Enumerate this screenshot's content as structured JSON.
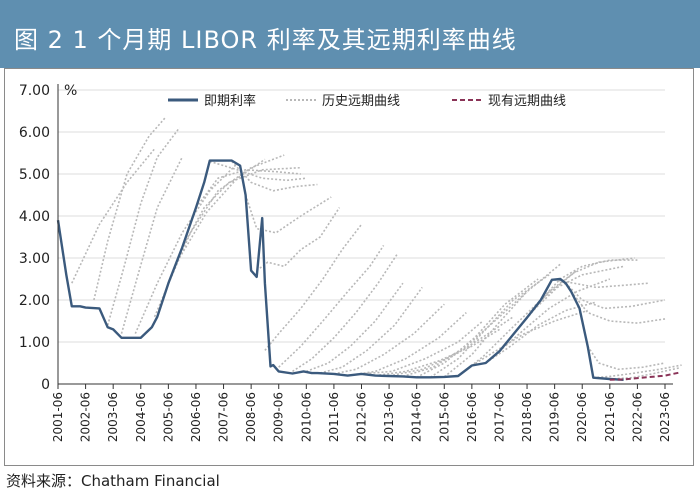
{
  "header": {
    "title": "图 2    1 个月期 LIBOR 利率及其远期利率曲线"
  },
  "source": "资料来源：Chatham Financial",
  "colors": {
    "title_bg": "#5f8fb0",
    "spot": "#3b5a7d",
    "historical": "#b8b8b8",
    "current": "#8a3357"
  },
  "chart_data": {
    "type": "line",
    "title": "1 个月期 LIBOR 利率及其远期利率曲线",
    "ylabel": "%",
    "ylim": [
      0,
      7
    ],
    "y_ticks": [
      "7.00",
      "6.00",
      "5.00",
      "4.00",
      "3.00",
      "2.00",
      "1.00",
      "0"
    ],
    "x_ticks": [
      "2001-06",
      "2002-06",
      "2003-06",
      "2004-06",
      "2005-06",
      "2006-06",
      "2007-06",
      "2008-06",
      "2009-06",
      "2010-06",
      "2011-06",
      "2012-06",
      "2013-06",
      "2014-06",
      "2015-06",
      "2016-06",
      "2017-06",
      "2018-06",
      "2019-06",
      "2020-06",
      "2021-06",
      "2022-06",
      "2023-06"
    ],
    "grid": true,
    "legend": "top",
    "legend_items": [
      {
        "name": "即期利率",
        "style": "solid",
        "color": "#3b5a7d"
      },
      {
        "name": "历史远期曲线",
        "style": "dotted",
        "color": "#b8b8b8"
      },
      {
        "name": "现有远期曲线",
        "style": "dashed",
        "color": "#8a3357"
      }
    ],
    "spot": {
      "name": "即期利率",
      "x": [
        2001.0,
        2001.3,
        2001.5,
        2001.8,
        2002.0,
        2002.5,
        2002.8,
        2003.0,
        2003.3,
        2003.5,
        2004.0,
        2004.4,
        2004.6,
        2005.0,
        2005.5,
        2006.0,
        2006.3,
        2006.5,
        2007.0,
        2007.3,
        2007.6,
        2007.8,
        2008.0,
        2008.2,
        2008.4,
        2008.5,
        2008.7,
        2008.8,
        2009.0,
        2009.5,
        2009.9,
        2010.2,
        2010.4,
        2011.0,
        2011.5,
        2012.0,
        2012.5,
        2013.0,
        2013.5,
        2014.0,
        2014.5,
        2015.0,
        2015.5,
        2016.0,
        2016.5,
        2017.0,
        2017.5,
        2018.0,
        2018.5,
        2018.9,
        2019.2,
        2019.4,
        2019.6,
        2019.9,
        2020.2,
        2020.4,
        2021.0,
        2021.5
      ],
      "y": [
        3.9,
        2.6,
        1.85,
        1.85,
        1.82,
        1.8,
        1.35,
        1.3,
        1.1,
        1.1,
        1.1,
        1.35,
        1.6,
        2.4,
        3.25,
        4.2,
        4.8,
        5.32,
        5.32,
        5.32,
        5.2,
        4.5,
        2.7,
        2.55,
        3.95,
        2.4,
        0.42,
        0.45,
        0.3,
        0.25,
        0.3,
        0.26,
        0.26,
        0.24,
        0.2,
        0.24,
        0.2,
        0.19,
        0.18,
        0.16,
        0.16,
        0.17,
        0.19,
        0.44,
        0.5,
        0.78,
        1.18,
        1.58,
        2.0,
        2.48,
        2.5,
        2.4,
        2.2,
        1.8,
        0.9,
        0.15,
        0.12,
        0.1
      ]
    },
    "current_forward": {
      "name": "现有远期曲线",
      "x": [
        2021.0,
        2021.5,
        2022.0,
        2022.5,
        2023.0,
        2023.5
      ],
      "y": [
        0.1,
        0.11,
        0.14,
        0.17,
        0.2,
        0.27
      ]
    },
    "historical_forwards": {
      "name": "历史远期曲线",
      "curves": [
        {
          "x": [
            2001.5,
            2002.5,
            2003.5,
            2004.5
          ],
          "y": [
            2.4,
            3.8,
            4.8,
            5.6
          ]
        },
        {
          "x": [
            2002.3,
            2002.8,
            2003.5,
            2004.3,
            2004.9
          ],
          "y": [
            2.0,
            3.4,
            5.0,
            5.9,
            6.35
          ]
        },
        {
          "x": [
            2002.8,
            2003.4,
            2004.0,
            2004.6,
            2005.4
          ],
          "y": [
            1.4,
            2.8,
            4.3,
            5.4,
            6.1
          ]
        },
        {
          "x": [
            2003.3,
            2003.9,
            2004.6,
            2005.5
          ],
          "y": [
            1.2,
            2.6,
            4.2,
            5.4
          ]
        },
        {
          "x": [
            2003.8,
            2004.6,
            2005.5,
            2006.5,
            2007.5
          ],
          "y": [
            1.2,
            2.4,
            3.6,
            4.6,
            5.25
          ]
        },
        {
          "x": [
            2004.5,
            2005.4,
            2006.4,
            2007.5,
            2008.5
          ],
          "y": [
            1.6,
            3.0,
            4.1,
            4.9,
            5.35
          ]
        },
        {
          "x": [
            2005.0,
            2005.8,
            2006.8,
            2008.0,
            2009.2
          ],
          "y": [
            2.4,
            3.6,
            4.6,
            5.15,
            5.45
          ]
        },
        {
          "x": [
            2005.5,
            2006.3,
            2007.2,
            2008.4,
            2009.8
          ],
          "y": [
            3.25,
            4.2,
            4.8,
            5.1,
            5.15
          ]
        },
        {
          "x": [
            2006.0,
            2006.8,
            2007.8,
            2009.0,
            2009.8
          ],
          "y": [
            4.2,
            4.9,
            5.1,
            5.05,
            5.0
          ]
        },
        {
          "x": [
            2006.5,
            2007.5,
            2008.4,
            2009.3,
            2010.0
          ],
          "y": [
            5.3,
            5.1,
            4.9,
            4.85,
            4.9
          ]
        },
        {
          "x": [
            2007.3,
            2008.0,
            2008.8,
            2009.6,
            2010.4
          ],
          "y": [
            5.3,
            4.8,
            4.6,
            4.7,
            4.75
          ]
        },
        {
          "x": [
            2007.8,
            2008.2,
            2008.9,
            2009.8,
            2010.9
          ],
          "y": [
            4.5,
            3.7,
            3.6,
            4.0,
            4.45
          ]
        },
        {
          "x": [
            2008.2,
            2008.6,
            2009.2,
            2009.8,
            2010.5,
            2011.2
          ],
          "y": [
            2.7,
            2.9,
            2.8,
            3.2,
            3.5,
            4.2
          ]
        },
        {
          "x": [
            2008.5,
            2009.0,
            2009.8,
            2010.6,
            2011.3,
            2012.0
          ],
          "y": [
            0.8,
            1.2,
            1.8,
            2.5,
            3.2,
            3.8
          ]
        },
        {
          "x": [
            2009.0,
            2009.8,
            2010.6,
            2011.5,
            2012.3,
            2012.8
          ],
          "y": [
            0.4,
            0.9,
            1.5,
            2.2,
            2.8,
            3.3
          ]
        },
        {
          "x": [
            2009.5,
            2010.2,
            2011.0,
            2011.8,
            2012.6,
            2013.3
          ],
          "y": [
            0.3,
            0.6,
            1.1,
            1.7,
            2.4,
            3.1
          ]
        },
        {
          "x": [
            2010.0,
            2010.8,
            2011.6,
            2012.5,
            2013.5
          ],
          "y": [
            0.3,
            0.5,
            0.9,
            1.5,
            2.4
          ]
        },
        {
          "x": [
            2010.5,
            2011.3,
            2012.2,
            2013.2,
            2014.2
          ],
          "y": [
            0.26,
            0.4,
            0.8,
            1.4,
            2.3
          ]
        },
        {
          "x": [
            2011.0,
            2011.8,
            2012.8,
            2013.9,
            2015.0
          ],
          "y": [
            0.24,
            0.35,
            0.7,
            1.2,
            1.9
          ]
        },
        {
          "x": [
            2011.5,
            2012.5,
            2013.6,
            2014.8,
            2015.8
          ],
          "y": [
            0.2,
            0.3,
            0.6,
            1.1,
            1.7
          ]
        },
        {
          "x": [
            2012.0,
            2013.1,
            2014.3,
            2015.5,
            2016.4
          ],
          "y": [
            0.24,
            0.3,
            0.6,
            1.0,
            1.5
          ]
        },
        {
          "x": [
            2012.5,
            2013.6,
            2014.8,
            2016.0,
            2017.0
          ],
          "y": [
            0.2,
            0.3,
            0.55,
            0.9,
            1.3
          ]
        },
        {
          "x": [
            2013.0,
            2014.2,
            2015.4,
            2016.6,
            2017.5
          ],
          "y": [
            0.19,
            0.35,
            0.7,
            1.2,
            1.6
          ]
        },
        {
          "x": [
            2013.5,
            2014.6,
            2015.8,
            2017.0,
            2018.0
          ],
          "y": [
            0.18,
            0.4,
            0.9,
            1.6,
            2.2
          ]
        },
        {
          "x": [
            2014.0,
            2015.0,
            2016.1,
            2017.2,
            2018.4
          ],
          "y": [
            0.16,
            0.5,
            1.1,
            1.9,
            2.5
          ]
        },
        {
          "x": [
            2014.5,
            2015.5,
            2016.5,
            2017.5,
            2018.8
          ],
          "y": [
            0.16,
            0.6,
            1.3,
            2.0,
            2.6
          ]
        },
        {
          "x": [
            2015.0,
            2016.0,
            2016.9,
            2018.0,
            2019.2
          ],
          "y": [
            0.17,
            0.7,
            1.4,
            2.2,
            2.85
          ]
        },
        {
          "x": [
            2015.5,
            2016.4,
            2017.4,
            2018.5,
            2019.8
          ],
          "y": [
            0.19,
            0.65,
            1.3,
            2.0,
            2.7
          ]
        },
        {
          "x": [
            2016.0,
            2016.9,
            2017.9,
            2019.0,
            2020.2
          ],
          "y": [
            0.44,
            0.8,
            1.2,
            1.5,
            1.75
          ]
        },
        {
          "x": [
            2016.5,
            2017.4,
            2018.4,
            2019.4,
            2020.5
          ],
          "y": [
            0.5,
            0.9,
            1.4,
            1.75,
            1.95
          ]
        },
        {
          "x": [
            2017.0,
            2017.9,
            2018.8,
            2019.8,
            2021.0
          ],
          "y": [
            0.78,
            1.3,
            1.8,
            2.2,
            2.5
          ]
        },
        {
          "x": [
            2017.5,
            2018.3,
            2019.1,
            2020.0,
            2021.5
          ],
          "y": [
            1.18,
            1.8,
            2.3,
            2.6,
            2.8
          ]
        },
        {
          "x": [
            2018.0,
            2018.8,
            2019.7,
            2020.6,
            2021.9
          ],
          "y": [
            1.58,
            2.2,
            2.65,
            2.9,
            3.0
          ]
        },
        {
          "x": [
            2018.5,
            2019.2,
            2020.0,
            2021.0,
            2022.0
          ],
          "y": [
            2.0,
            2.5,
            2.8,
            2.95,
            2.95
          ]
        },
        {
          "x": [
            2019.0,
            2019.7,
            2020.5,
            2021.5,
            2022.4
          ],
          "y": [
            2.48,
            2.4,
            2.3,
            2.35,
            2.4
          ]
        },
        {
          "x": [
            2019.4,
            2020.0,
            2020.8,
            2021.8,
            2023.0
          ],
          "y": [
            2.4,
            2.0,
            1.8,
            1.85,
            2.0
          ]
        },
        {
          "x": [
            2019.6,
            2020.2,
            2021.0,
            2022.0,
            2023.0
          ],
          "y": [
            2.2,
            1.7,
            1.5,
            1.45,
            1.55
          ]
        },
        {
          "x": [
            2020.2,
            2020.6,
            2021.3,
            2022.2,
            2023.0
          ],
          "y": [
            0.9,
            0.5,
            0.35,
            0.4,
            0.5
          ]
        },
        {
          "x": [
            2020.4,
            2021.0,
            2021.8,
            2022.8,
            2023.6
          ],
          "y": [
            0.15,
            0.18,
            0.25,
            0.35,
            0.45
          ]
        },
        {
          "x": [
            2021.0,
            2021.8,
            2022.6,
            2023.5
          ],
          "y": [
            0.12,
            0.15,
            0.25,
            0.38
          ]
        }
      ]
    }
  }
}
